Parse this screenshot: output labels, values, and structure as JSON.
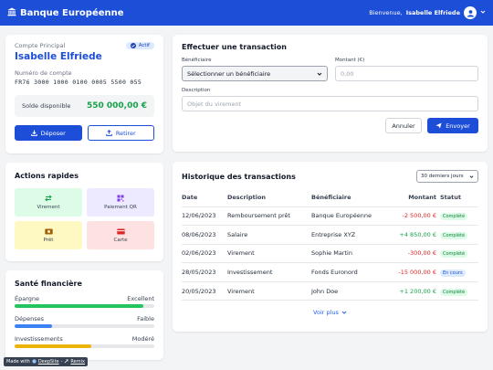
{
  "header": {
    "app_name": "Banque Européenne",
    "welcome_text": "Bienvenue,",
    "user_name": "Isabelle Elfriede"
  },
  "account": {
    "type_label": "Compte Principal",
    "status_badge": "Actif",
    "holder_name": "Isabelle Elfriede",
    "number_label": "Numéro de compte",
    "number": "FR76 3000 1000 0100 0005 5500 055",
    "balance_label": "Solde disponible",
    "balance_value": "550 000,00 €",
    "deposit_label": "Déposer",
    "withdraw_label": "Retirer"
  },
  "quick_actions": {
    "title": "Actions rapides",
    "items": [
      {
        "label": "Virement",
        "icon": "transfer-arrows-icon",
        "color": "#16a34a"
      },
      {
        "label": "Paiement QR",
        "icon": "qr-code-icon",
        "color": "#7c3aed"
      },
      {
        "label": "Prêt",
        "icon": "money-bill-icon",
        "color": "#a16207"
      },
      {
        "label": "Carte",
        "icon": "credit-card-icon",
        "color": "#dc2626"
      }
    ]
  },
  "health": {
    "title": "Santé financière",
    "items": [
      {
        "label": "Épargne",
        "value": "Excellent",
        "level": 0.92,
        "color": "#22c55e"
      },
      {
        "label": "Dépenses",
        "value": "Faible",
        "level": 0.27,
        "color": "#3b82f6"
      },
      {
        "label": "Investissements",
        "value": "Modéré",
        "level": 0.55,
        "color": "#eab308"
      }
    ]
  },
  "transaction_form": {
    "title": "Effectuer une transaction",
    "beneficiary_label": "Bénéficiaire",
    "beneficiary_value": "Sélectionner un bénéficiaire",
    "amount_label": "Montant (€)",
    "amount_placeholder": "0,00",
    "description_label": "Description",
    "description_placeholder": "Objet du virement",
    "cancel_label": "Annuler",
    "send_label": "Envoyer"
  },
  "history": {
    "title": "Historique des transactions",
    "period": "30 derniers jours",
    "columns": [
      "Date",
      "Description",
      "Bénéficiaire",
      "Montant",
      "Statut"
    ],
    "rows": [
      {
        "date": "12/06/2023",
        "description": "Remboursement prêt",
        "beneficiary": "Banque Européenne",
        "amount": "-2 500,00 €",
        "sign": "neg",
        "status": "Complété",
        "status_kind": "done"
      },
      {
        "date": "08/06/2023",
        "description": "Salaire",
        "beneficiary": "Entreprise XYZ",
        "amount": "+4 850,00 €",
        "sign": "pos",
        "status": "Complété",
        "status_kind": "done"
      },
      {
        "date": "02/06/2023",
        "description": "Virement",
        "beneficiary": "Sophie Martin",
        "amount": "-300,00 €",
        "sign": "neg",
        "status": "Complété",
        "status_kind": "done"
      },
      {
        "date": "28/05/2023",
        "description": "Investissement",
        "beneficiary": "Fonds Euronord",
        "amount": "-15 000,00 €",
        "sign": "neg",
        "status": "En cours",
        "status_kind": "pending"
      },
      {
        "date": "20/05/2023",
        "description": "Virement",
        "beneficiary": "John Doe",
        "amount": "+1 200,00 €",
        "sign": "pos",
        "status": "Complété",
        "status_kind": "done"
      }
    ],
    "see_more": "Voir plus"
  },
  "footer_badge": {
    "made_with": "Made with",
    "brand": "DeepSite",
    "separator": "-",
    "remix": "Remix"
  }
}
